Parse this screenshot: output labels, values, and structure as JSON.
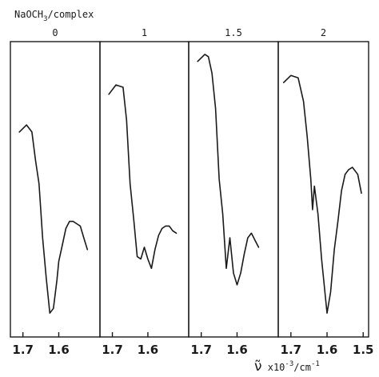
{
  "chart_data": {
    "type": "line",
    "title": "",
    "legend_title_parts": {
      "base": "NaOCH",
      "sub": "3",
      "tail": "/complex"
    },
    "xlabel_parts": {
      "symbol": "ν̃",
      "text1": " x10",
      "sup1": "-3",
      "text2": "/cm",
      "sup2": "-1"
    },
    "ylabel": "",
    "grid": false,
    "panels": [
      {
        "label": "0",
        "x_ticks": [
          {
            "value": 1.7,
            "text": "1.7"
          },
          {
            "value": 1.6,
            "text": "1.6"
          }
        ],
        "series": [
          {
            "x": [
              1.71,
              1.69,
              1.675,
              1.665,
              1.655,
              1.645,
              1.635,
              1.625,
              1.615,
              1.605,
              1.6,
              1.59,
              1.58,
              1.57,
              1.56,
              1.55,
              1.54,
              1.53,
              1.52
            ],
            "y": [
              0.8,
              0.83,
              0.8,
              0.68,
              0.58,
              0.35,
              0.18,
              0.03,
              0.05,
              0.17,
              0.25,
              0.32,
              0.39,
              0.42,
              0.42,
              0.41,
              0.4,
              0.35,
              0.3
            ]
          }
        ]
      },
      {
        "label": "1",
        "x_ticks": [
          {
            "value": 1.7,
            "text": "1.7"
          },
          {
            "value": 1.6,
            "text": "1.6"
          }
        ],
        "series": [
          {
            "x": [
              1.71,
              1.69,
              1.67,
              1.66,
              1.65,
              1.64,
              1.63,
              1.62,
              1.61,
              1.6,
              1.59,
              1.58,
              1.57,
              1.56,
              1.55,
              1.54,
              1.53,
              1.52
            ],
            "y": [
              0.96,
              1.0,
              0.99,
              0.85,
              0.58,
              0.43,
              0.27,
              0.26,
              0.31,
              0.26,
              0.22,
              0.3,
              0.36,
              0.39,
              0.4,
              0.4,
              0.38,
              0.37
            ]
          }
        ]
      },
      {
        "label": "1.5",
        "x_ticks": [
          {
            "value": 1.7,
            "text": "1.7"
          },
          {
            "value": 1.6,
            "text": "1.6"
          }
        ],
        "series": [
          {
            "x": [
              1.71,
              1.69,
              1.68,
              1.67,
              1.66,
              1.65,
              1.64,
              1.63,
              1.62,
              1.61,
              1.6,
              1.59,
              1.58,
              1.57,
              1.56,
              1.55,
              1.54
            ],
            "y": [
              1.1,
              1.13,
              1.12,
              1.05,
              0.9,
              0.6,
              0.45,
              0.22,
              0.35,
              0.2,
              0.15,
              0.2,
              0.28,
              0.35,
              0.37,
              0.34,
              0.31
            ]
          }
        ]
      },
      {
        "label": "2",
        "x_ticks": [
          {
            "value": 1.7,
            "text": "1.7"
          },
          {
            "value": 1.6,
            "text": "1.6"
          },
          {
            "value": 1.5,
            "text": "1.5"
          }
        ],
        "series": [
          {
            "x": [
              1.72,
              1.7,
              1.68,
              1.665,
              1.655,
              1.645,
              1.64,
              1.635,
              1.625,
              1.615,
              1.6,
              1.59,
              1.58,
              1.57,
              1.56,
              1.55,
              1.54,
              1.53,
              1.515,
              1.505
            ],
            "y": [
              1.01,
              1.04,
              1.03,
              0.93,
              0.78,
              0.6,
              0.47,
              0.57,
              0.45,
              0.26,
              0.03,
              0.12,
              0.3,
              0.42,
              0.55,
              0.62,
              0.64,
              0.65,
              0.62,
              0.54
            ]
          }
        ]
      }
    ]
  }
}
